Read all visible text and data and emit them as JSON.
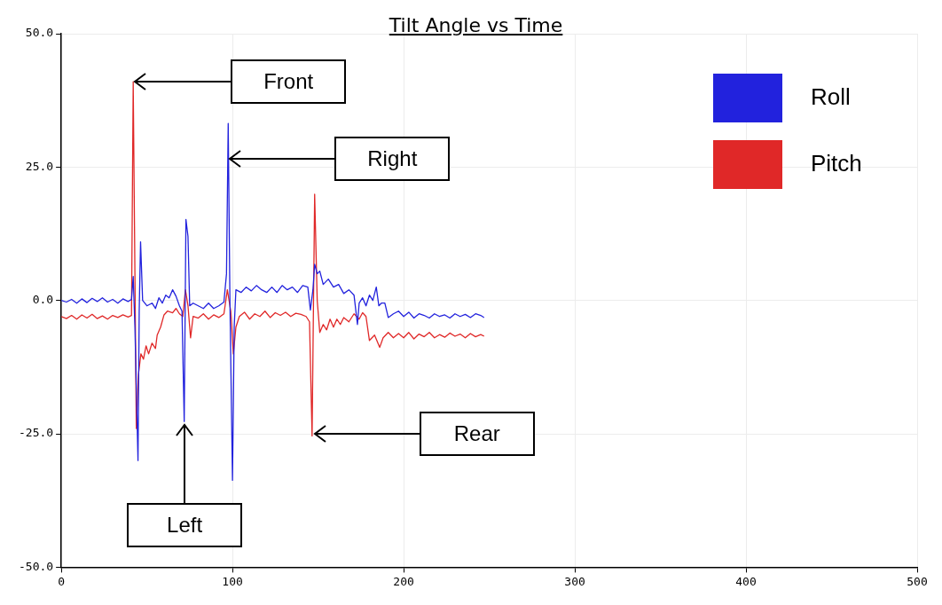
{
  "chart_data": {
    "type": "line",
    "title": "Tilt Angle vs Time",
    "x": [
      0,
      3,
      6,
      9,
      12,
      15,
      18,
      21,
      24,
      27,
      30,
      33,
      36,
      39,
      41,
      42,
      43,
      44.8,
      45.5,
      46.3,
      47.5,
      50,
      53,
      55,
      57,
      59,
      61,
      63,
      65,
      67,
      69,
      70.5,
      71.8,
      72.8,
      74,
      75,
      77,
      80,
      83,
      86,
      89,
      92,
      95,
      96.5,
      97.5,
      98.5,
      100,
      101,
      102,
      105,
      108,
      111,
      114,
      117,
      120,
      123,
      126,
      129,
      132,
      135,
      138,
      141,
      144,
      145.5,
      147,
      148,
      149.5,
      151,
      153,
      156,
      159,
      162,
      165,
      168,
      171,
      173,
      174,
      176,
      178,
      180,
      182,
      184,
      185.5,
      187,
      189,
      191,
      194,
      197,
      200,
      203,
      206,
      209,
      212,
      215,
      218,
      221,
      224,
      227,
      230,
      233,
      236,
      239,
      242,
      245,
      247
    ],
    "series": [
      {
        "name": "Roll",
        "color": "#2222dd",
        "values": [
          0,
          -0.3,
          0.2,
          -0.5,
          0.3,
          -0.4,
          0.4,
          -0.2,
          0.5,
          -0.3,
          0.2,
          -0.5,
          0.3,
          -0.2,
          0.2,
          4.5,
          -5,
          -30,
          -2,
          11,
          0,
          -1,
          -0.5,
          -1.5,
          0.5,
          -0.5,
          1,
          0.5,
          2,
          0.8,
          -1,
          -2,
          -22.7,
          15.2,
          12,
          -1,
          -0.5,
          -1,
          -1.5,
          -0.5,
          -1.5,
          -1,
          -0.3,
          5,
          33.2,
          0,
          -33.7,
          -5,
          2,
          1.5,
          2.5,
          1.8,
          2.8,
          2,
          1.5,
          2.5,
          1.5,
          2.8,
          2,
          2.5,
          1.5,
          2.8,
          2.5,
          -1.8,
          2,
          6.8,
          5,
          5.5,
          3,
          4,
          2.5,
          3,
          1.3,
          2,
          1,
          -4.5,
          -0.5,
          0.5,
          -1,
          1,
          0,
          2.5,
          -1,
          -0.5,
          -0.5,
          -3.2,
          -2.5,
          -2,
          -3,
          -2.2,
          -3.3,
          -2.5,
          -2.8,
          -3.3,
          -2.5,
          -3,
          -2.7,
          -3.3,
          -2.5,
          -3,
          -2.6,
          -3.2,
          -2.5,
          -2.8,
          -3.2
        ]
      },
      {
        "name": "Pitch",
        "color": "#e02828",
        "x": [
          0,
          3,
          6,
          9,
          12,
          15,
          18,
          21,
          24,
          27,
          30,
          33,
          36,
          39,
          41,
          42,
          43,
          43.8,
          45,
          46.5,
          48,
          49.5,
          51,
          53,
          55,
          56,
          58,
          60,
          62,
          65,
          67,
          69,
          71,
          72.5,
          74,
          75.5,
          77,
          80,
          83,
          86,
          89,
          92,
          95,
          97,
          99,
          100.5,
          102,
          104,
          107,
          110,
          113,
          116,
          119,
          122,
          125,
          128,
          131,
          134,
          137,
          140,
          143,
          145,
          146.5,
          148,
          149.5,
          151,
          153,
          155,
          157,
          159,
          161,
          163,
          165,
          168,
          171,
          174,
          176,
          178,
          180,
          183,
          186,
          188,
          191,
          194,
          197,
          200,
          203,
          206,
          209,
          212,
          215,
          218,
          221,
          224,
          227,
          230,
          233,
          236,
          239,
          242,
          245,
          247
        ],
        "values": [
          -3,
          -3.4,
          -2.8,
          -3.5,
          -2.7,
          -3.3,
          -2.6,
          -3.4,
          -2.9,
          -3.5,
          -2.8,
          -3.2,
          -2.7,
          -3.1,
          -2.8,
          41,
          5,
          -24,
          -14,
          -10,
          -11,
          -8.5,
          -10,
          -8,
          -9,
          -6.5,
          -5,
          -2.7,
          -2,
          -2.3,
          -1.5,
          -2.5,
          -3,
          2,
          -1,
          -7,
          -3,
          -3.3,
          -2.5,
          -3.5,
          -2.7,
          -3.2,
          -2.5,
          2,
          -2,
          -10,
          -5,
          -3,
          -2.2,
          -3.5,
          -2.5,
          -3,
          -2,
          -3.2,
          -2.3,
          -2.8,
          -2.2,
          -3,
          -2.4,
          -2.6,
          -3,
          -4,
          -25.4,
          19.9,
          0,
          -6,
          -4.5,
          -5.5,
          -3.5,
          -5,
          -3.5,
          -4.5,
          -3.2,
          -4,
          -2.5,
          -3.5,
          -2.3,
          -3,
          -7.5,
          -6.5,
          -8.8,
          -7,
          -6,
          -7,
          -6.2,
          -7,
          -6,
          -7.2,
          -6.3,
          -6.8,
          -6,
          -7,
          -6.4,
          -6.9,
          -6.1,
          -6.7,
          -6.3,
          -7,
          -6.2,
          -6.8,
          -6.4,
          -6.7
        ]
      }
    ],
    "xlim": [
      0,
      500
    ],
    "xticks": [
      0,
      100,
      200,
      300,
      400,
      500
    ],
    "ylim": [
      -50,
      50
    ],
    "yticks": [
      {
        "value": -50,
        "label": "-50.0"
      },
      {
        "value": -25,
        "label": "-25.0"
      },
      {
        "value": 0,
        "label": "0.0"
      },
      {
        "value": 25,
        "label": "25.0"
      },
      {
        "value": 50,
        "label": "50.0"
      }
    ],
    "annotations": [
      {
        "text": "Front",
        "x": 42,
        "y": 41
      },
      {
        "text": "Right",
        "x": 97.5,
        "y": 26.5
      },
      {
        "text": "Left",
        "x": 72,
        "y": -23
      },
      {
        "text": "Rear",
        "x": 147,
        "y": -25
      }
    ],
    "grid": true,
    "legend": "top right",
    "marker": "none",
    "line_style": "solid"
  }
}
